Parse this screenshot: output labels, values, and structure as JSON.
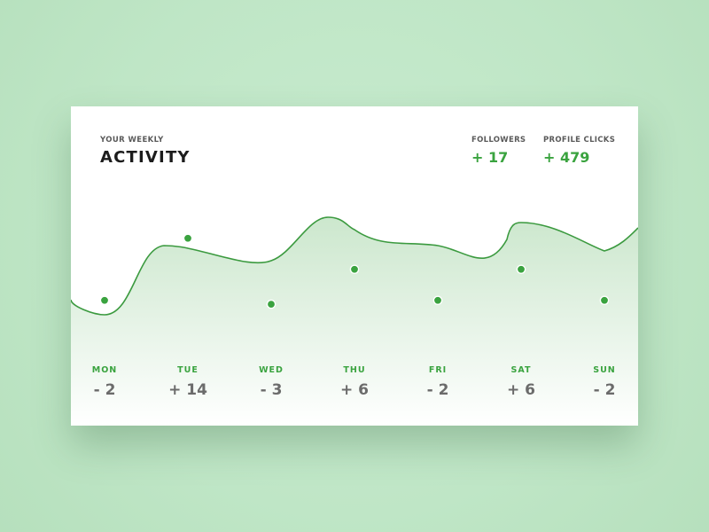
{
  "header": {
    "subtitle": "YOUR WEEKLY",
    "title": "ACTIVITY"
  },
  "stats": [
    {
      "label": "FOLLOWERS",
      "value": "+ 17"
    },
    {
      "label": "PROFILE CLICKS",
      "value": "+ 479"
    }
  ],
  "colors": {
    "accent": "#3aa33f",
    "line": "#3b9a3f",
    "card": "#ffffff",
    "background": "#c3e8c9"
  },
  "chart_data": {
    "type": "area",
    "categories": [
      "MON",
      "TUE",
      "WED",
      "THU",
      "FRI",
      "SAT",
      "SUN"
    ],
    "values": [
      -2,
      14,
      -3,
      6,
      -2,
      6,
      -2
    ],
    "labels": [
      "- 2",
      "+ 14",
      "- 3",
      "+ 6",
      "- 2",
      "+ 6",
      "- 2"
    ],
    "grid": false,
    "legend": "none"
  }
}
